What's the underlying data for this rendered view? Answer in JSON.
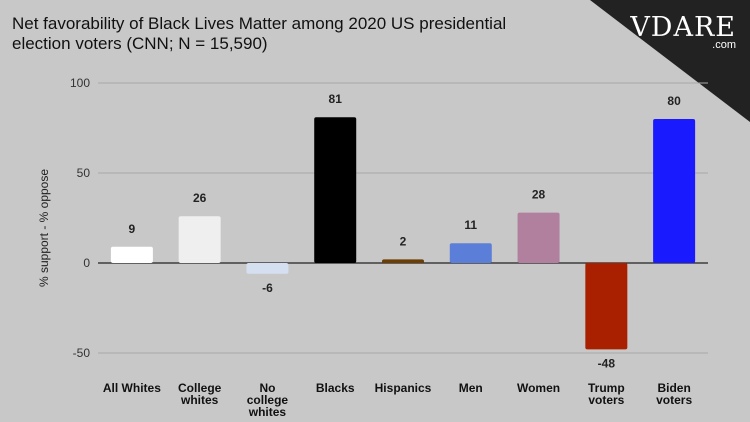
{
  "title_lines": [
    "Net favorability of Black Lives Matter among 2020 US presidential",
    "election voters (CNN; N = 15,590)"
  ],
  "logo": {
    "text": "VDARE",
    "suffix": ".com"
  },
  "colors": {
    "background": "#c8c8c8",
    "grid": "#a9a9a9",
    "zero_line": "#222222"
  },
  "chart_data": {
    "type": "bar",
    "title": "Net favorability of Black Lives Matter among 2020 US presidential election voters (CNN; N = 15,590)",
    "xlabel": "",
    "ylabel": "% support - % oppose",
    "ylim": [
      -50,
      100
    ],
    "yticks": [
      100,
      50,
      0,
      -50
    ],
    "categories": [
      [
        "All Whites"
      ],
      [
        "College",
        "whites"
      ],
      [
        "No",
        "college",
        "whites"
      ],
      [
        "Blacks"
      ],
      [
        "Hispanics"
      ],
      [
        "Men"
      ],
      [
        "Women"
      ],
      [
        "Trump",
        "voters"
      ],
      [
        "Biden",
        "voters"
      ]
    ],
    "values": [
      9,
      26,
      -6,
      81,
      2,
      11,
      28,
      -48,
      80
    ],
    "bar_colors": [
      "#ffffff",
      "#efefef",
      "#d4dff0",
      "#000000",
      "#6b3e04",
      "#5b7fd8",
      "#b0809e",
      "#a92000",
      "#1a1aff"
    ]
  }
}
